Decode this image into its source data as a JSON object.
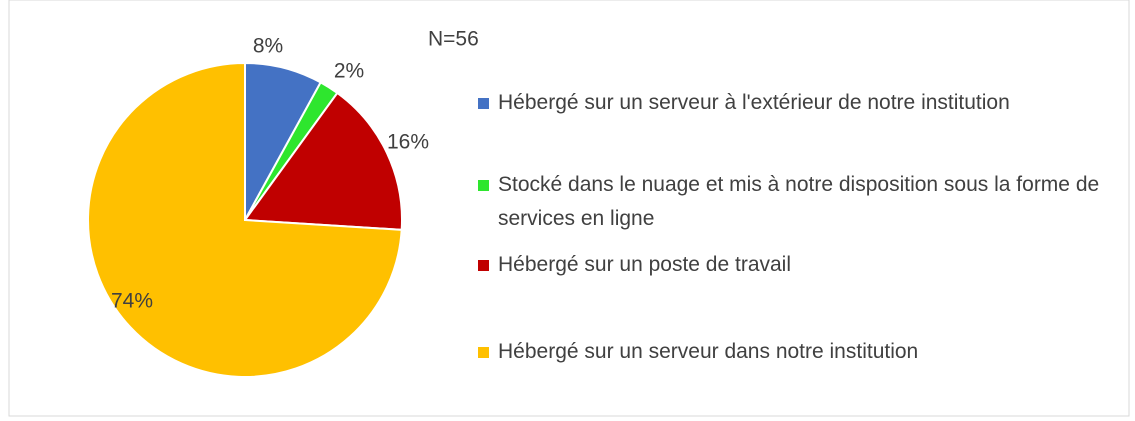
{
  "chart_data": {
    "type": "pie",
    "annotation": "N=56",
    "categories": [
      "Hébergé sur un serveur à l'extérieur de notre institution",
      "Stocké dans le nuage et mis à notre disposition sous la forme de services en ligne",
      "Hébergé sur un poste de travail",
      "Hébergé sur un serveur dans notre institution"
    ],
    "values": [
      8,
      2,
      16,
      74
    ],
    "value_labels": [
      "8%",
      "2%",
      "16%",
      "74%"
    ],
    "colors": [
      "#4472c4",
      "#2ee62e",
      "#c00000",
      "#ffc000"
    ],
    "legend": "right"
  }
}
